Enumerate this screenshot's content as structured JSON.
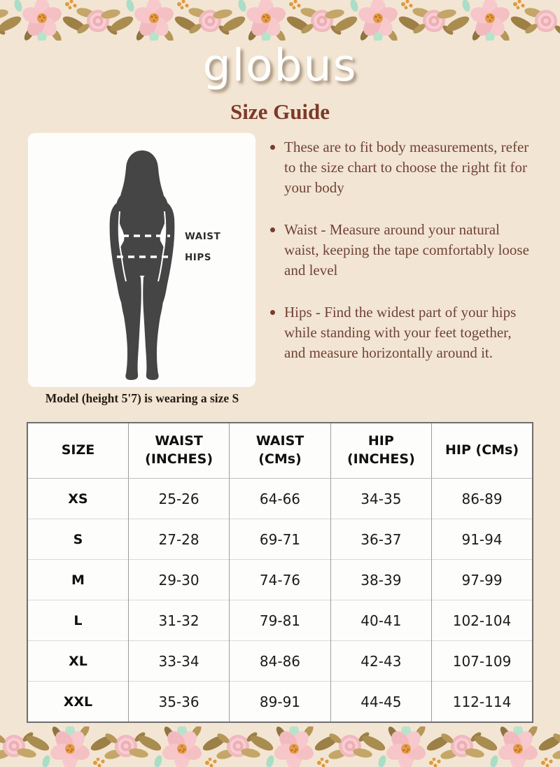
{
  "page": {
    "background": "#f3e5d3"
  },
  "brand": {
    "logo_text": "globus"
  },
  "header": {
    "title": "Size Guide"
  },
  "figure": {
    "waist_label": "WAIST",
    "hips_label": "HIPS",
    "caption": "Model (height 5'7) is wearing a size S"
  },
  "instructions": [
    "These are to fit body measurements, refer to the size chart to choose the right fit for your body",
    "Waist - Measure around your natural waist, keeping the tape comfortably loose and level",
    "Hips - Find the widest part of your hips while standing with your feet together, and measure horizontally around it."
  ],
  "size_chart": {
    "columns": [
      "SIZE",
      "WAIST (INCHES)",
      "WAIST (CMs)",
      "HIP (INCHES)",
      "HIP (CMs)"
    ],
    "rows": [
      [
        "XS",
        "25-26",
        "64-66",
        "34-35",
        "86-89"
      ],
      [
        "S",
        "27-28",
        "69-71",
        "36-37",
        "91-94"
      ],
      [
        "M",
        "29-30",
        "74-76",
        "38-39",
        "97-99"
      ],
      [
        "L",
        "31-32",
        "79-81",
        "40-41",
        "102-104"
      ],
      [
        "XL",
        "33-34",
        "84-86",
        "42-43",
        "107-109"
      ],
      [
        "XXL",
        "35-36",
        "89-91",
        "44-45",
        "112-114"
      ]
    ]
  },
  "colors": {
    "title_accent": "#7c3a2a",
    "instruction_text": "#6f4437",
    "silhouette": "#454545",
    "floral_pink": "#f7c9cc",
    "flower_center_orange": "#e69b43",
    "leaf_olive": "#a98c4f",
    "leaf_mint": "#b7e3cd",
    "table_background": "#fdfdfb"
  }
}
